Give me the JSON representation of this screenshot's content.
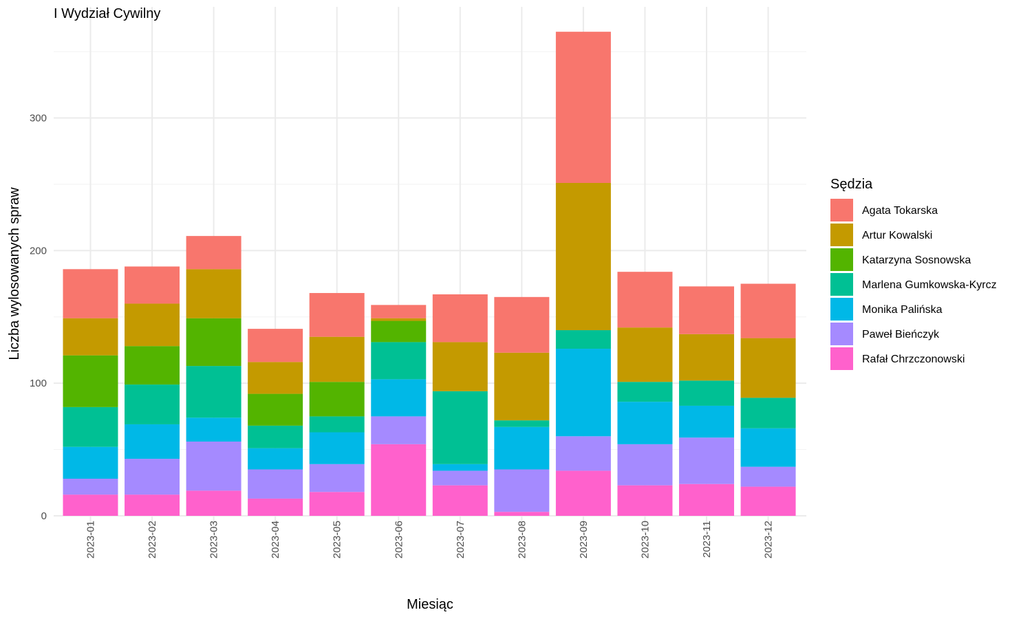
{
  "chart_data": {
    "type": "bar",
    "stacked": true,
    "title": "I Wydział Cywilny",
    "xlabel": "Miesiąc",
    "ylabel": "Liczba wylosowanych spraw",
    "ylim": [
      0,
      382
    ],
    "yticks": [
      0,
      100,
      200,
      300
    ],
    "grid": true,
    "legend_title": "Sędzia",
    "legend_position": "right",
    "categories": [
      "2023-01",
      "2023-02",
      "2023-03",
      "2023-04",
      "2023-05",
      "2023-06",
      "2023-07",
      "2023-08",
      "2023-09",
      "2023-10",
      "2023-11",
      "2023-12"
    ],
    "series": [
      {
        "name": "Rafał Chrzczonowski",
        "color": "#FF61CC",
        "values": [
          16,
          16,
          19,
          13,
          18,
          54,
          23,
          3,
          34,
          23,
          24,
          22
        ]
      },
      {
        "name": "Paweł Bieńczyk",
        "color": "#A58AFF",
        "values": [
          12,
          27,
          37,
          22,
          21,
          21,
          11,
          32,
          26,
          31,
          35,
          15
        ]
      },
      {
        "name": "Monika Palińska",
        "color": "#00B8E7",
        "values": [
          24,
          26,
          18,
          16,
          24,
          28,
          5,
          32,
          66,
          32,
          24,
          29
        ]
      },
      {
        "name": "Marlena Gumkowska-Kyrcz",
        "color": "#00C094",
        "values": [
          30,
          30,
          39,
          17,
          12,
          28,
          55,
          5,
          14,
          15,
          19,
          23
        ]
      },
      {
        "name": "Katarzyna Sosnowska",
        "color": "#53B400",
        "values": [
          39,
          29,
          36,
          24,
          26,
          16,
          0,
          0,
          0,
          0,
          0,
          0
        ]
      },
      {
        "name": "Artur Kowalski",
        "color": "#C49A00",
        "values": [
          28,
          32,
          37,
          24,
          34,
          2,
          37,
          51,
          111,
          41,
          35,
          45
        ]
      },
      {
        "name": "Agata Tokarska",
        "color": "#F8766D",
        "values": [
          37,
          28,
          25,
          25,
          33,
          10,
          36,
          42,
          114,
          42,
          36,
          41
        ]
      }
    ],
    "legend_order": [
      "Agata Tokarska",
      "Artur Kowalski",
      "Katarzyna Sosnowska",
      "Marlena Gumkowska-Kyrcz",
      "Monika Palińska",
      "Paweł Bieńczyk",
      "Rafał Chrzczonowski"
    ]
  }
}
